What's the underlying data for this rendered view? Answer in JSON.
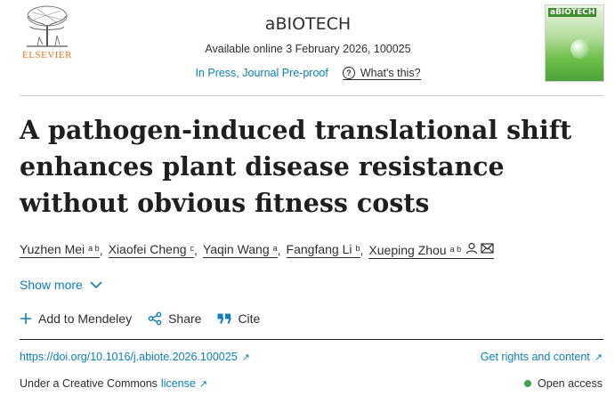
{
  "header": {
    "publisher_name": "ELSEVIER",
    "journal_title": "aBIOTECH",
    "available_online": "Available online 3 February 2026, 100025",
    "status_link": "In Press, Journal Pre-proof",
    "whats_this": "What's this?",
    "cover_title": "aBIOTECH"
  },
  "article": {
    "title": "A pathogen-induced translational shift enhances plant disease resistance without obvious fitness costs",
    "authors": [
      {
        "name": "Yuzhen Mei",
        "affiliations": "a b"
      },
      {
        "name": "Xiaofei Cheng",
        "affiliations": "c"
      },
      {
        "name": "Yaqin Wang",
        "affiliations": "a"
      },
      {
        "name": "Fangfang Li",
        "affiliations": "b"
      },
      {
        "name": "Xueping Zhou",
        "affiliations": "a b"
      }
    ],
    "show_more": "Show more"
  },
  "actions": {
    "mendeley": "Add to Mendeley",
    "share": "Share",
    "cite": "Cite"
  },
  "links": {
    "doi": "https://doi.org/10.1016/j.abiote.2026.100025",
    "rights": "Get rights and content",
    "license_prefix": "Under a Creative Commons",
    "license_link": "license",
    "open_access": "Open access"
  },
  "icons": {
    "external": "↗",
    "chevron_down": "chevron-down-icon",
    "author": "person-icon",
    "email": "envelope-icon"
  },
  "colors": {
    "link": "#0c7dbb",
    "publisher": "#e9711c",
    "open_access": "#3fa34d"
  }
}
